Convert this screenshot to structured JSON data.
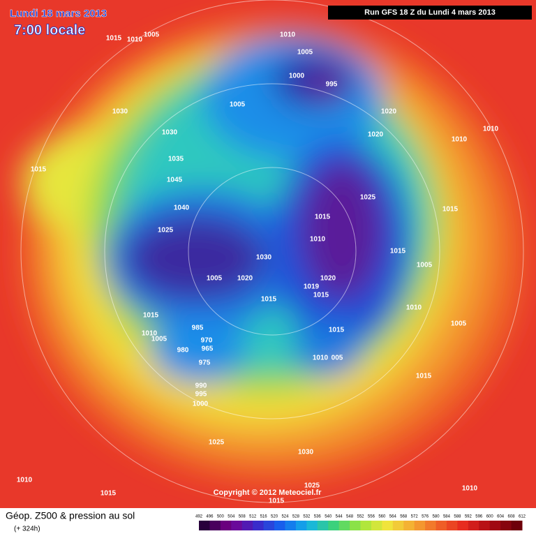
{
  "header": {
    "date": "Lundi 18 mars 2013",
    "time": "7:00 locale",
    "run": "Run GFS 18 Z du Lundi 4 mars 2013"
  },
  "footer": {
    "title": "Géop. Z500 & pression au sol",
    "lead": "(+ 324h)",
    "copyright": "Copyright © 2012 Meteociel.fr"
  },
  "scale": {
    "labels": [
      "492",
      "496",
      "500",
      "504",
      "508",
      "512",
      "516",
      "520",
      "524",
      "528",
      "532",
      "536",
      "540",
      "544",
      "548",
      "552",
      "556",
      "560",
      "564",
      "568",
      "572",
      "576",
      "580",
      "584",
      "588",
      "592",
      "596",
      "600",
      "604",
      "608",
      "612"
    ]
  },
  "isobars": [
    "1015",
    "1010",
    "1005",
    "1010",
    "1005",
    "1000",
    "995",
    "1005",
    "1030",
    "1020",
    "1010",
    "1020",
    "1010",
    "1030",
    "1015",
    "1035",
    "1045",
    "1040",
    "1025",
    "1015",
    "1015",
    "1025",
    "1010",
    "1015",
    "1030",
    "1005",
    "1005",
    "1020",
    "1020",
    "1019",
    "1015",
    "1015",
    "1010",
    "1015",
    "1005",
    "985",
    "1015",
    "1010",
    "1005",
    "970",
    "980",
    "965",
    "1010",
    "005",
    "975",
    "1015",
    "990",
    "995",
    "1000",
    "1025",
    "1030",
    "1010",
    "1025",
    "1010",
    "1015",
    "1015"
  ]
}
